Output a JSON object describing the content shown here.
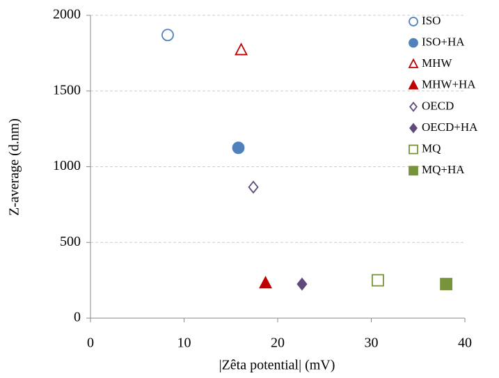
{
  "chart_data": {
    "type": "scatter",
    "xlabel": "|Zêta potential| (mV)",
    "ylabel": "Z-average (d.nm)",
    "xlim": [
      0,
      40
    ],
    "xticks": [
      0,
      10,
      20,
      30,
      40
    ],
    "ylim": [
      0,
      2000
    ],
    "yticks": [
      0,
      500,
      1000,
      1500,
      2000
    ],
    "grid": true,
    "legend": "right",
    "series": [
      {
        "name": "ISO",
        "color": "#4f81bd",
        "marker": "circle",
        "filled": false,
        "x": [
          8.25
        ],
        "values": [
          1870
        ]
      },
      {
        "name": "ISO+HA",
        "color": "#4f81bd",
        "marker": "circle",
        "filled": true,
        "x": [
          15.8
        ],
        "values": [
          1125
        ]
      },
      {
        "name": "MHW",
        "color": "#c00000",
        "marker": "triangle",
        "filled": false,
        "x": [
          16.1
        ],
        "values": [
          1770
        ]
      },
      {
        "name": "MHW+HA",
        "color": "#c00000",
        "marker": "triangle",
        "filled": true,
        "x": [
          18.7
        ],
        "values": [
          230
        ]
      },
      {
        "name": "OECD",
        "color": "#604a7b",
        "marker": "diamond",
        "filled": false,
        "x": [
          17.4
        ],
        "values": [
          865
        ]
      },
      {
        "name": "OECD+HA",
        "color": "#604a7b",
        "marker": "diamond",
        "filled": true,
        "x": [
          22.6
        ],
        "values": [
          225
        ]
      },
      {
        "name": "MQ",
        "color": "#77933c",
        "marker": "square",
        "filled": false,
        "x": [
          30.7
        ],
        "values": [
          250
        ]
      },
      {
        "name": "MQ+HA",
        "color": "#77933c",
        "marker": "square",
        "filled": true,
        "x": [
          38.0
        ],
        "values": [
          225
        ]
      }
    ]
  }
}
